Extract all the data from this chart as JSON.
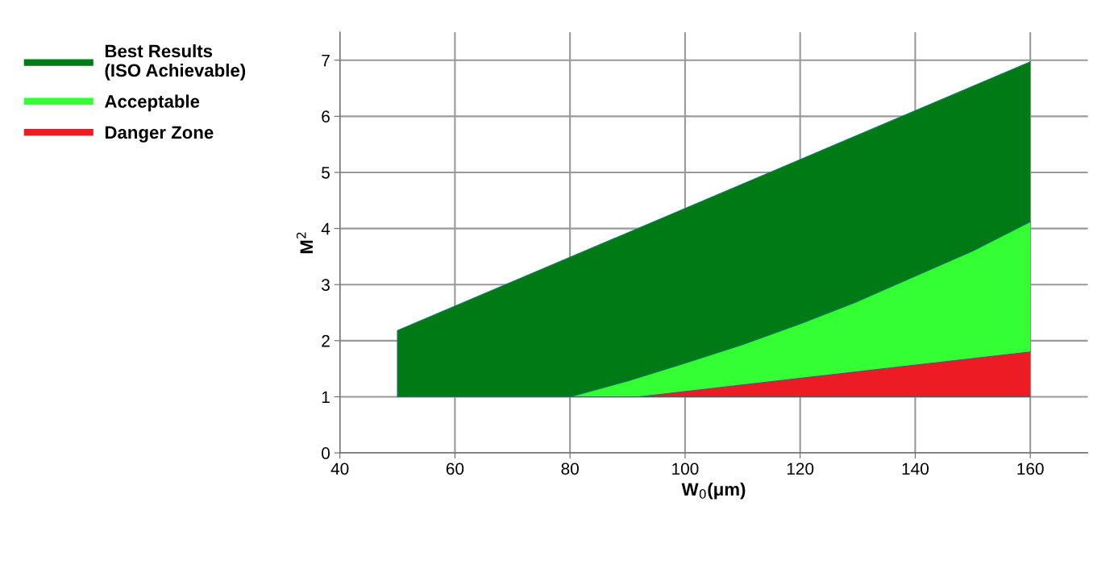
{
  "chart_data": {
    "type": "area",
    "xlabel": "W$_{0}$(μm)",
    "ylabel": "M$^{2}$",
    "series": [
      {
        "name": "Best Results\n(ISO Achievable)",
        "color": "#007a15",
        "x": [
          50,
          50,
          160
        ],
        "values": [
          1,
          2.18,
          6.97
        ]
      },
      {
        "name": "Acceptable",
        "color": "#33ff33",
        "x": [
          80,
          90,
          100,
          110,
          120,
          130,
          140,
          150,
          160
        ],
        "values": [
          1,
          1.28,
          1.6,
          1.93,
          2.3,
          2.7,
          3.15,
          3.6,
          4.12
        ]
      },
      {
        "name": "Danger Zone",
        "color": "#ed1c24",
        "x": [
          92,
          160
        ],
        "values": [
          1,
          1.8
        ]
      }
    ],
    "ref_lines": [
      {
        "axis": "y",
        "value": 1,
        "color": "#1f6f6f"
      }
    ],
    "xlim": [
      40,
      170
    ],
    "ylim": [
      0,
      7.5
    ],
    "xticks": [
      40,
      60,
      80,
      100,
      120,
      140,
      160
    ],
    "yticks": [
      0,
      1,
      2,
      3,
      4,
      5,
      6,
      7
    ],
    "grid": true,
    "legend": "top left"
  }
}
